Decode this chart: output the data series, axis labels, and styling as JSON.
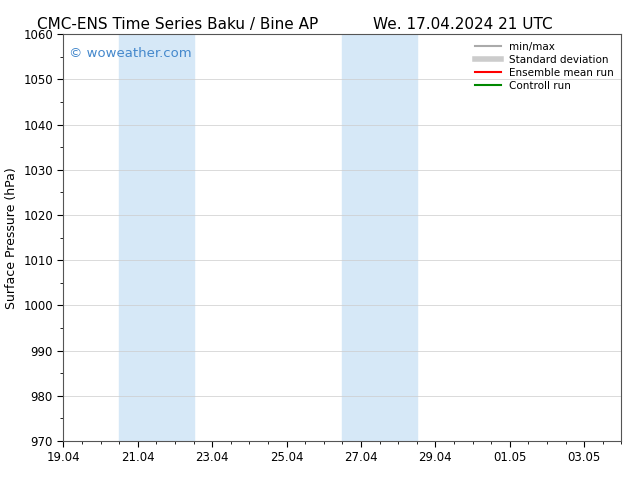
{
  "title_left": "CMC-ENS Time Series Baku / Bine AP",
  "title_right": "We. 17.04.2024 21 UTC",
  "ylabel": "Surface Pressure (hPa)",
  "ylim": [
    970,
    1060
  ],
  "yticks": [
    970,
    980,
    990,
    1000,
    1010,
    1020,
    1030,
    1040,
    1050,
    1060
  ],
  "xtick_labels": [
    "19.04",
    "21.04",
    "23.04",
    "25.04",
    "27.04",
    "29.04",
    "01.05",
    "03.05"
  ],
  "xtick_days": [
    0,
    2,
    4,
    6,
    8,
    10,
    12,
    14
  ],
  "x_min": 0,
  "x_max": 15,
  "shade_bands": [
    {
      "start_day": 1.5,
      "end_day": 3.5
    },
    {
      "start_day": 7.5,
      "end_day": 9.5
    }
  ],
  "shade_color": "#d6e8f7",
  "watermark_text": "© woweather.com",
  "watermark_color": "#4488cc",
  "legend_items": [
    {
      "label": "min/max",
      "color": "#aaaaaa",
      "lw": 1.5,
      "style": "solid"
    },
    {
      "label": "Standard deviation",
      "color": "#cccccc",
      "lw": 4,
      "style": "solid"
    },
    {
      "label": "Ensemble mean run",
      "color": "#ff0000",
      "lw": 1.5,
      "style": "solid"
    },
    {
      "label": "Controll run",
      "color": "#008800",
      "lw": 1.5,
      "style": "solid"
    }
  ],
  "bg_color": "#ffffff",
  "title_fontsize": 11,
  "axis_fontsize": 9,
  "tick_fontsize": 8.5,
  "watermark_fontsize": 9.5
}
